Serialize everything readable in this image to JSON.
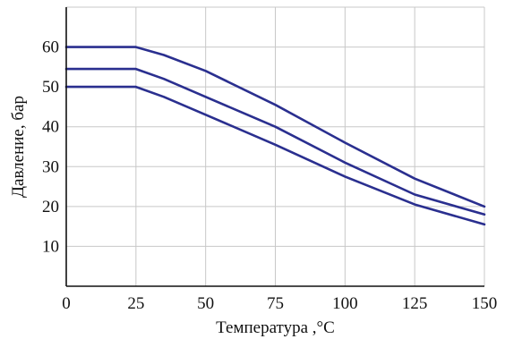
{
  "chart_data": {
    "type": "line",
    "title": "",
    "xlabel": "Температура ,°С",
    "ylabel": "Давление, бар",
    "xlim": [
      0,
      150
    ],
    "ylim": [
      0,
      70
    ],
    "x_ticks": [
      0,
      25,
      50,
      75,
      100,
      125,
      150
    ],
    "y_ticks": [
      10,
      20,
      30,
      40,
      50,
      60
    ],
    "grid": true,
    "line_color": "#2a2f8f",
    "series": [
      {
        "x": [
          0,
          25,
          35,
          50,
          75,
          100,
          125,
          150
        ],
        "values": [
          60,
          60,
          58,
          54,
          45.5,
          36,
          27,
          20
        ]
      },
      {
        "x": [
          0,
          25,
          35,
          50,
          75,
          100,
          125,
          150
        ],
        "values": [
          54.5,
          54.5,
          52,
          47.5,
          40,
          31,
          23,
          18
        ]
      },
      {
        "x": [
          0,
          25,
          35,
          50,
          75,
          100,
          125,
          150
        ],
        "values": [
          50,
          50,
          47.5,
          43,
          35.5,
          27.5,
          20.5,
          15.5
        ]
      }
    ]
  }
}
